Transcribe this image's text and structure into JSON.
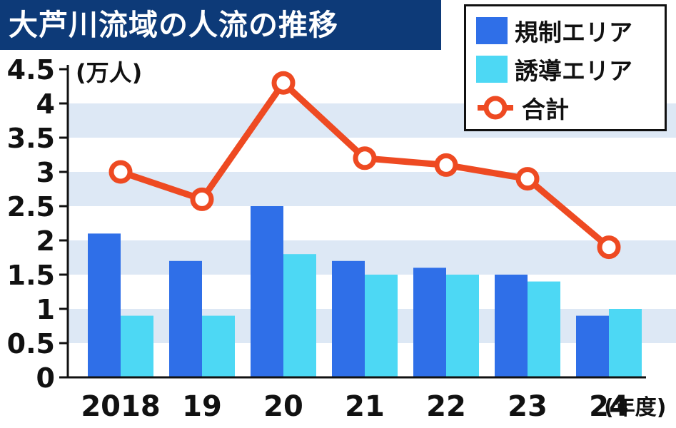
{
  "chart_data": {
    "type": "bar",
    "title": "大芦川流域の人流の推移",
    "unit_label": "(万人)",
    "x_unit_label": "(年度)",
    "categories": [
      "2018",
      "19",
      "20",
      "21",
      "22",
      "23",
      "24"
    ],
    "ylim": [
      0,
      4.5
    ],
    "yticks": [
      "0",
      "0.5",
      "1",
      "1.5",
      "2",
      "2.5",
      "3",
      "3.5",
      "4",
      "4.5"
    ],
    "series": [
      {
        "name": "規制エリア",
        "type": "bar",
        "color": "#2f6fe8",
        "values": [
          2.1,
          1.7,
          2.5,
          1.7,
          1.6,
          1.5,
          0.9
        ]
      },
      {
        "name": "誘導エリア",
        "type": "bar",
        "color": "#4dd8f4",
        "values": [
          0.9,
          0.9,
          1.8,
          1.5,
          1.5,
          1.4,
          1.0
        ]
      },
      {
        "name": "合計",
        "type": "line",
        "color": "#ee4a22",
        "values": [
          3.0,
          2.6,
          4.3,
          3.2,
          3.1,
          2.9,
          1.9
        ]
      }
    ],
    "grid": "alternating-horizontal-bands",
    "legend_position": "top-right"
  }
}
